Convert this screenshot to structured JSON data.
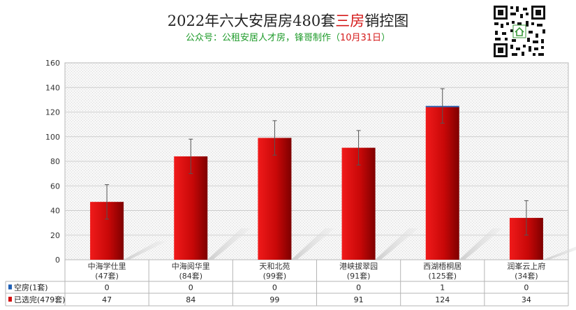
{
  "header": {
    "title_prefix": "2022年六大安居房480套",
    "title_highlight": "三房",
    "title_suffix": "销控图",
    "subtitle_prefix": "公众号：公租安居人才房，锋哥制作（",
    "subtitle_date": "10月31日",
    "subtitle_suffix": "）"
  },
  "qr_icon": "qr-code-icon",
  "colors": {
    "sold": "#d40f0f",
    "sold_dark": "#8a0000",
    "vacant": "#1f5fb5",
    "grid": "#cfcfcf",
    "plot_bg": "#ebebeb"
  },
  "chart_data": {
    "type": "bar",
    "title": "2022年六大安居房480套三房销控图",
    "categories": [
      "中海学仕里",
      "中海阅华里",
      "天和北苑",
      "港峡拔翠园",
      "西湖梧桐居",
      "润峯云上府"
    ],
    "category_counts": [
      "(47套)",
      "(84套)",
      "(99套)",
      "(91套)",
      "(125套)",
      "(34套)"
    ],
    "stacked": true,
    "series": [
      {
        "name": "空房(1套)",
        "values": [
          0,
          0,
          0,
          0,
          1,
          0
        ],
        "color": "#1f5fb5"
      },
      {
        "name": "已选完(479套)",
        "values": [
          47,
          84,
          99,
          91,
          124,
          34
        ],
        "color": "#d40f0f"
      }
    ],
    "yticks": [
      "0",
      "20",
      "40",
      "60",
      "80",
      "100",
      "120",
      "140",
      "160"
    ],
    "ylim": [
      0,
      160
    ],
    "error_bar": 14,
    "grid": true,
    "legend": "data-table"
  }
}
